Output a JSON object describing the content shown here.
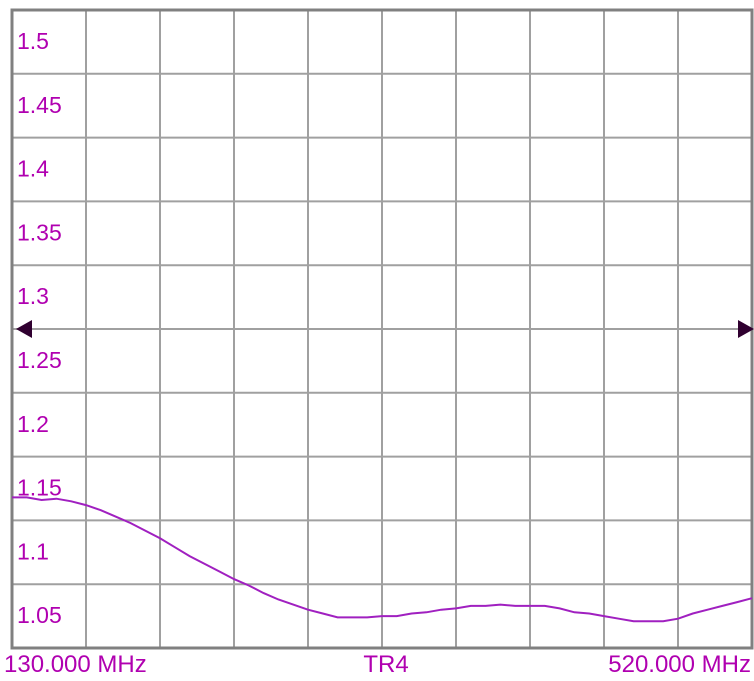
{
  "chart_data": {
    "type": "line",
    "title": "",
    "xlabel": "",
    "ylabel": "",
    "x_range": [
      130.0,
      520.0
    ],
    "ylim": [
      1.025,
      1.525
    ],
    "y_ticks": [
      "1.5",
      "1.45",
      "1.4",
      "1.35",
      "1.3",
      "1.25",
      "1.2",
      "1.15",
      "1.1",
      "1.05"
    ],
    "reference_level": 1.275,
    "grid": true,
    "x_divisions": 10,
    "y_divisions": 10,
    "labels": {
      "start": "130.000 MHz",
      "trace": "TR4",
      "stop": "520.000 MHz"
    },
    "series": [
      {
        "x": [
          130,
          137.8,
          145.6,
          153.4,
          161.2,
          169,
          176.8,
          184.6,
          192.4,
          200.2,
          208,
          215.8,
          223.6,
          231.4,
          239.2,
          247,
          254.8,
          262.6,
          270.4,
          278.2,
          286,
          293.8,
          301.6,
          309.4,
          317.2,
          325,
          332.8,
          340.6,
          348.4,
          356.2,
          364,
          371.8,
          379.6,
          387.4,
          395.2,
          403,
          410.8,
          418.6,
          426.4,
          434.2,
          442,
          449.8,
          457.6,
          465.4,
          473.2,
          481,
          488.8,
          496.6,
          504.4,
          512.2,
          520
        ],
        "values": [
          1.143,
          1.143,
          1.141,
          1.142,
          1.14,
          1.137,
          1.133,
          1.128,
          1.123,
          1.117,
          1.111,
          1.104,
          1.097,
          1.091,
          1.085,
          1.079,
          1.074,
          1.068,
          1.063,
          1.059,
          1.055,
          1.052,
          1.049,
          1.049,
          1.049,
          1.05,
          1.05,
          1.052,
          1.053,
          1.055,
          1.056,
          1.058,
          1.058,
          1.059,
          1.058,
          1.058,
          1.058,
          1.056,
          1.053,
          1.052,
          1.05,
          1.048,
          1.046,
          1.046,
          1.046,
          1.048,
          1.052,
          1.055,
          1.058,
          1.061,
          1.064
        ],
        "color": "#a020c0"
      }
    ]
  },
  "colors": {
    "background": "#ffffff",
    "frame": "#808080",
    "grid": "#a0a0a0",
    "text": "#b000b0",
    "trace": "#a020c0",
    "marker": "#300030"
  }
}
